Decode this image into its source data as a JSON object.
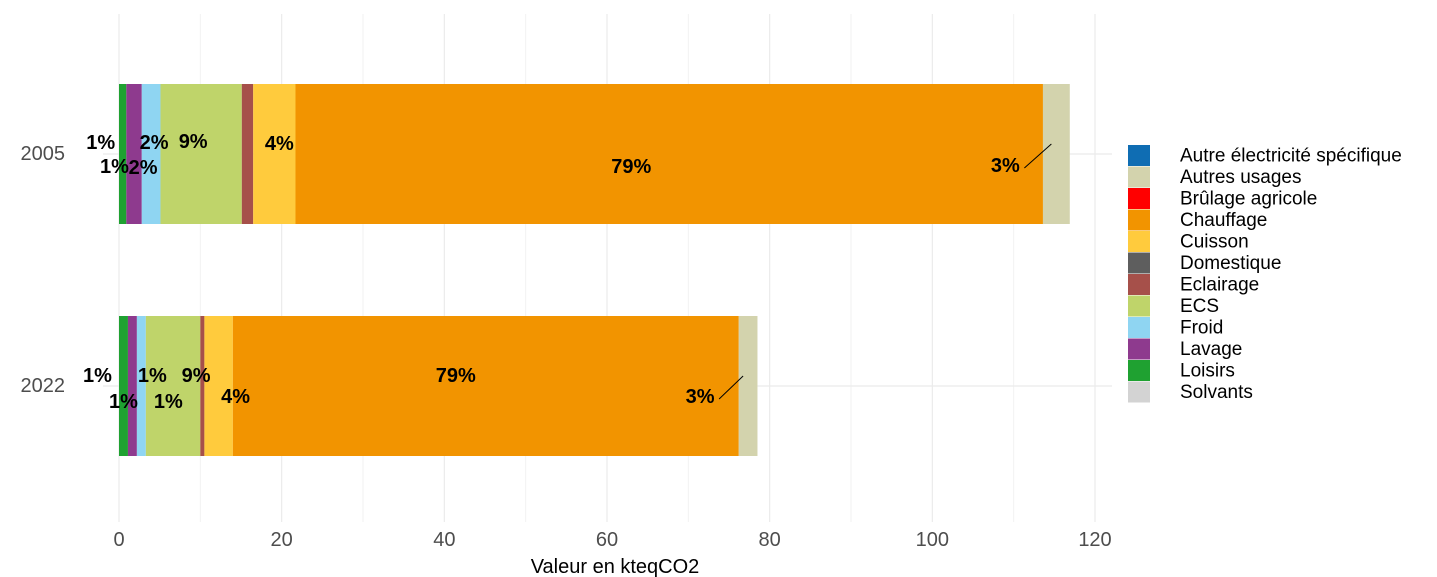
{
  "chart_data": {
    "type": "bar",
    "orientation": "horizontal",
    "stacked": true,
    "xlabel": "Valeur en kteqCO2",
    "ylabel": "",
    "xlim": [
      0,
      120
    ],
    "x_ticks": [
      0,
      20,
      40,
      60,
      80,
      100,
      120
    ],
    "grid": true,
    "legend_position": "right",
    "categories": [
      "2005",
      "2022"
    ],
    "series": [
      {
        "name": "Loisirs",
        "color": "#1FA131",
        "values": [
          0.9,
          1.1
        ]
      },
      {
        "name": "Lavage",
        "color": "#8E3A8E",
        "values": [
          1.9,
          1.1
        ]
      },
      {
        "name": "Froid",
        "color": "#8FD5F2",
        "values": [
          2.3,
          1.1
        ]
      },
      {
        "name": "ECS",
        "color": "#BFD46A",
        "values": [
          10.0,
          6.7
        ]
      },
      {
        "name": "Eclairage",
        "color": "#A6504A",
        "values": [
          1.4,
          0.5
        ]
      },
      {
        "name": "Cuisson",
        "color": "#FFCB3D",
        "values": [
          5.2,
          3.5
        ]
      },
      {
        "name": "Chauffage",
        "color": "#F29400",
        "values": [
          91.9,
          62.2
        ]
      },
      {
        "name": "Autres usages",
        "color": "#D3D3AD",
        "values": [
          3.3,
          2.3
        ]
      },
      {
        "name": "Autre électricité spécifique",
        "color": "#0F6DB3",
        "values": [
          0,
          0
        ]
      },
      {
        "name": "Brûlage agricole",
        "color": "#FF0000",
        "values": [
          0,
          0
        ]
      },
      {
        "name": "Domestique",
        "color": "#5E5E5E",
        "values": [
          0,
          0
        ]
      },
      {
        "name": "Solvants",
        "color": "#D3D3D3",
        "values": [
          0,
          0
        ]
      }
    ],
    "legend": [
      {
        "name": "Autre électricité spécifique",
        "color": "#0F6DB3"
      },
      {
        "name": "Autres usages",
        "color": "#D3D3AD"
      },
      {
        "name": "Brûlage agricole",
        "color": "#FF0000"
      },
      {
        "name": "Chauffage",
        "color": "#F29400"
      },
      {
        "name": "Cuisson",
        "color": "#FFCB3D"
      },
      {
        "name": "Domestique",
        "color": "#5E5E5E"
      },
      {
        "name": "Eclairage",
        "color": "#A6504A"
      },
      {
        "name": "ECS",
        "color": "#BFD46A"
      },
      {
        "name": "Froid",
        "color": "#8FD5F2"
      },
      {
        "name": "Lavage",
        "color": "#8E3A8E"
      },
      {
        "name": "Loisirs",
        "color": "#1FA131"
      },
      {
        "name": "Solvants",
        "color": "#D3D3D3"
      }
    ],
    "annotations": [
      {
        "category": "2005",
        "text": "1%",
        "series": "Loisirs"
      },
      {
        "category": "2005",
        "text": "2%",
        "series": "Lavage"
      },
      {
        "category": "2005",
        "text": "2%",
        "series": "Froid"
      },
      {
        "category": "2005",
        "text": "1%",
        "series": "Eclairage"
      },
      {
        "category": "2005",
        "text": "9%",
        "series": "ECS"
      },
      {
        "category": "2005",
        "text": "4%",
        "series": "Cuisson"
      },
      {
        "category": "2005",
        "text": "79%",
        "series": "Chauffage"
      },
      {
        "category": "2005",
        "text": "3%",
        "series": "Autres usages"
      },
      {
        "category": "2022",
        "text": "1%",
        "series": "Loisirs"
      },
      {
        "category": "2022",
        "text": "1%",
        "series": "Lavage"
      },
      {
        "category": "2022",
        "text": "1%",
        "series": "Froid"
      },
      {
        "category": "2022",
        "text": "1%",
        "series": "Eclairage"
      },
      {
        "category": "2022",
        "text": "9%",
        "series": "ECS"
      },
      {
        "category": "2022",
        "text": "4%",
        "series": "Cuisson"
      },
      {
        "category": "2022",
        "text": "79%",
        "series": "Chauffage"
      },
      {
        "category": "2022",
        "text": "3%",
        "series": "Autres usages"
      }
    ]
  }
}
